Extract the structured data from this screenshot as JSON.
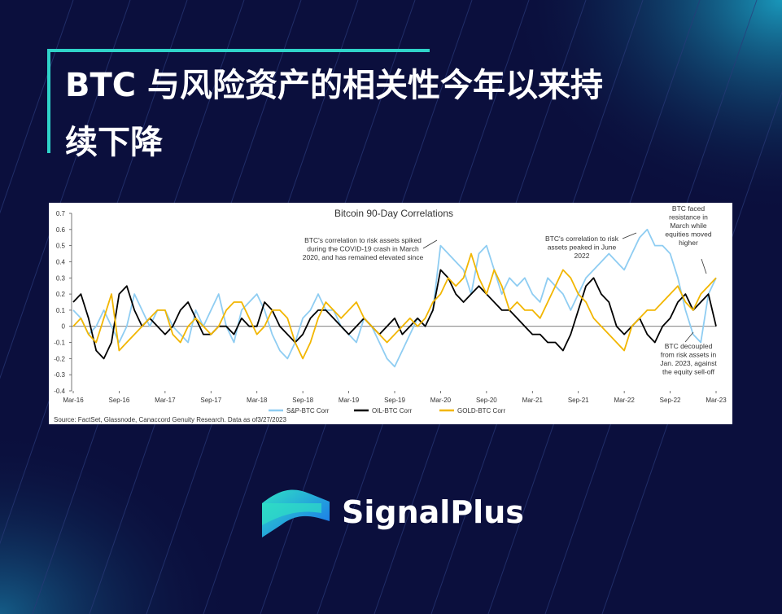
{
  "header": {
    "title_lines": [
      "BTC 与风险资产的相关性今年以来持",
      "续下降"
    ]
  },
  "chart_data": {
    "type": "line",
    "title": "Bitcoin 90-Day Correlations",
    "x": [
      "Mar-16",
      "Apr-16",
      "May-16",
      "Jun-16",
      "Jul-16",
      "Aug-16",
      "Sep-16",
      "Oct-16",
      "Nov-16",
      "Dec-16",
      "Jan-17",
      "Feb-17",
      "Mar-17",
      "Apr-17",
      "May-17",
      "Jun-17",
      "Jul-17",
      "Aug-17",
      "Sep-17",
      "Oct-17",
      "Nov-17",
      "Dec-17",
      "Jan-18",
      "Feb-18",
      "Mar-18",
      "Apr-18",
      "May-18",
      "Jun-18",
      "Jul-18",
      "Aug-18",
      "Sep-18",
      "Oct-18",
      "Nov-18",
      "Dec-18",
      "Jan-19",
      "Feb-19",
      "Mar-19",
      "Apr-19",
      "May-19",
      "Jun-19",
      "Jul-19",
      "Aug-19",
      "Sep-19",
      "Oct-19",
      "Nov-19",
      "Dec-19",
      "Jan-20",
      "Feb-20",
      "Mar-20",
      "Apr-20",
      "May-20",
      "Jun-20",
      "Jul-20",
      "Aug-20",
      "Sep-20",
      "Oct-20",
      "Nov-20",
      "Dec-20",
      "Jan-21",
      "Feb-21",
      "Mar-21",
      "Apr-21",
      "May-21",
      "Jun-21",
      "Jul-21",
      "Aug-21",
      "Sep-21",
      "Oct-21",
      "Nov-21",
      "Dec-21",
      "Jan-22",
      "Feb-22",
      "Mar-22",
      "Apr-22",
      "May-22",
      "Jun-22",
      "Jul-22",
      "Aug-22",
      "Sep-22",
      "Oct-22",
      "Nov-22",
      "Dec-22",
      "Jan-23",
      "Feb-23",
      "Mar-23"
    ],
    "xticks": [
      "Mar-16",
      "Sep-16",
      "Mar-17",
      "Sep-17",
      "Mar-18",
      "Sep-18",
      "Mar-19",
      "Sep-19",
      "Mar-20",
      "Sep-20",
      "Mar-21",
      "Sep-21",
      "Mar-22",
      "Sep-22",
      "Mar-23"
    ],
    "ylim": [
      -0.4,
      0.7
    ],
    "yticks": [
      0.7,
      0.6,
      0.5,
      0.4,
      0.3,
      0.2,
      0.1,
      0,
      -0.1,
      -0.2,
      -0.3,
      -0.4
    ],
    "series": [
      {
        "name": "S&P-BTC Corr",
        "color": "#8fcdf2",
        "values": [
          0.1,
          0.05,
          -0.05,
          0.0,
          0.1,
          0.0,
          -0.1,
          0.0,
          0.2,
          0.1,
          0.0,
          0.1,
          0.1,
          0.0,
          -0.05,
          -0.1,
          0.1,
          0.0,
          0.1,
          0.2,
          0.0,
          -0.1,
          0.1,
          0.15,
          0.2,
          0.1,
          -0.05,
          -0.15,
          -0.2,
          -0.1,
          0.05,
          0.1,
          0.2,
          0.1,
          0.1,
          0.0,
          -0.05,
          -0.1,
          0.05,
          0.0,
          -0.1,
          -0.2,
          -0.25,
          -0.15,
          -0.05,
          0.05,
          0.0,
          0.1,
          0.5,
          0.45,
          0.4,
          0.35,
          0.2,
          0.45,
          0.5,
          0.35,
          0.2,
          0.3,
          0.25,
          0.3,
          0.2,
          0.15,
          0.3,
          0.25,
          0.2,
          0.1,
          0.2,
          0.3,
          0.35,
          0.4,
          0.45,
          0.4,
          0.35,
          0.45,
          0.55,
          0.6,
          0.5,
          0.5,
          0.45,
          0.3,
          0.1,
          -0.05,
          -0.1,
          0.2,
          0.3
        ]
      },
      {
        "name": "OIL-BTC Corr",
        "color": "#000000",
        "values": [
          0.15,
          0.2,
          0.05,
          -0.15,
          -0.2,
          -0.1,
          0.2,
          0.25,
          0.1,
          0.0,
          0.05,
          0.0,
          -0.05,
          0.0,
          0.1,
          0.15,
          0.05,
          -0.05,
          -0.05,
          0.0,
          0.0,
          -0.05,
          0.05,
          0.0,
          0.0,
          0.15,
          0.1,
          0.0,
          -0.05,
          -0.1,
          -0.05,
          0.05,
          0.1,
          0.1,
          0.05,
          0.0,
          -0.05,
          0.0,
          0.05,
          0.0,
          -0.05,
          0.0,
          0.05,
          -0.05,
          0.0,
          0.05,
          0.0,
          0.1,
          0.35,
          0.3,
          0.2,
          0.15,
          0.2,
          0.25,
          0.2,
          0.15,
          0.1,
          0.1,
          0.05,
          0.0,
          -0.05,
          -0.05,
          -0.1,
          -0.1,
          -0.15,
          -0.05,
          0.1,
          0.25,
          0.3,
          0.2,
          0.15,
          0.0,
          -0.05,
          0.0,
          0.05,
          -0.05,
          -0.1,
          0.0,
          0.05,
          0.15,
          0.2,
          0.1,
          0.15,
          0.2,
          0.0
        ]
      },
      {
        "name": "GOLD-BTC Corr",
        "color": "#f2b600",
        "values": [
          0.0,
          0.05,
          -0.05,
          -0.1,
          0.05,
          0.2,
          -0.15,
          -0.1,
          -0.05,
          0.0,
          0.05,
          0.1,
          0.1,
          -0.05,
          -0.1,
          0.0,
          0.05,
          0.0,
          -0.05,
          0.0,
          0.1,
          0.15,
          0.15,
          0.05,
          -0.05,
          0.0,
          0.1,
          0.1,
          0.05,
          -0.1,
          -0.2,
          -0.1,
          0.05,
          0.15,
          0.1,
          0.05,
          0.1,
          0.15,
          0.05,
          0.0,
          -0.05,
          -0.1,
          -0.05,
          0.0,
          0.05,
          0.0,
          0.05,
          0.15,
          0.2,
          0.3,
          0.25,
          0.3,
          0.45,
          0.3,
          0.2,
          0.35,
          0.25,
          0.1,
          0.15,
          0.1,
          0.1,
          0.05,
          0.15,
          0.25,
          0.35,
          0.3,
          0.2,
          0.15,
          0.05,
          0.0,
          -0.05,
          -0.1,
          -0.15,
          0.0,
          0.05,
          0.1,
          0.1,
          0.15,
          0.2,
          0.25,
          0.15,
          0.1,
          0.2,
          0.25,
          0.3
        ]
      }
    ],
    "annotations": [
      {
        "lines": [
          "BTC's correlation to risk assets spiked",
          "during the COVID-19 crash in March",
          "2020, and has remained elevated since"
        ]
      },
      {
        "lines": [
          "BTC's correlation to risk",
          "assets peaked in June",
          "2022"
        ]
      },
      {
        "lines": [
          "BTC faced",
          "resistance in",
          "March while",
          "equities moved",
          "higher"
        ]
      },
      {
        "lines": [
          "BTC decoupled",
          "from risk assets in",
          "Jan. 2023, against",
          "the equity sell-off"
        ]
      }
    ],
    "source": "Source: FactSet, Glassnode, Canaccord Genuity Research. Data as of3/27/2023"
  },
  "brand": {
    "name": "SignalPlus"
  }
}
